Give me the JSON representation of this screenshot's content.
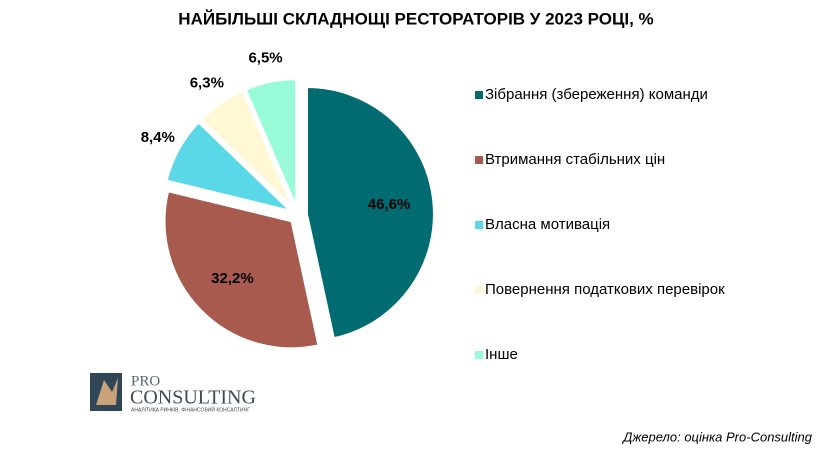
{
  "chart_data": {
    "type": "pie",
    "title": "НАЙБІЛЬШІ СКЛАДНОЩІ РЕСТОРАТОРІВ У 2023 РОЦІ, %",
    "categories": [
      "Зібрання (збереження) команди",
      "Втримання стабільних цін",
      "Власна мотивація",
      "Повернення податкових перевірок",
      "Інше"
    ],
    "values": [
      46.6,
      32.2,
      8.4,
      6.3,
      6.5
    ],
    "value_labels": [
      "46,6%",
      "32,2%",
      "8,4%",
      "6,3%",
      "6,5%"
    ],
    "colors": [
      "#006b70",
      "#a85a4e",
      "#5ad8e8",
      "#fff8d4",
      "#98fcd8"
    ],
    "legend": "right",
    "source": "Джерело: оцінка Pro-Consulting"
  },
  "logo": {
    "name": "PRO",
    "name2": "CONSULTING",
    "tagline": "АНАЛІТИКА РИНКІВ. ФІНАНСОВИЙ КОНСАЛТИНГ"
  }
}
